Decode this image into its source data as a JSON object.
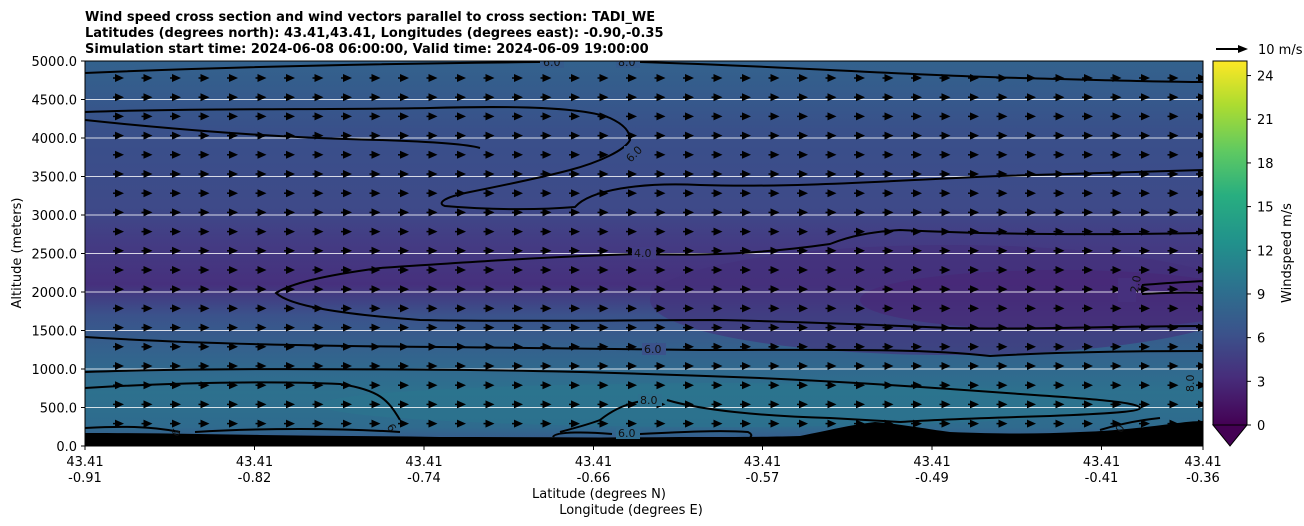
{
  "chart_data": {
    "type": "heatmap",
    "title_lines": [
      "Wind speed cross section and wind vectors parallel to cross section: TADI_WE",
      "Latitudes (degrees north): 43.41,43.41, Longitudes (degrees east): -0.90,-0.35",
      "Simulation start time: 2024-06-08 06:00:00, Valid time: 2024-06-09 19:00:00"
    ],
    "ylabel": "Altitude (meters)",
    "xlabel_lat": "Latitude (degrees N)",
    "xlabel_lon": "Longitude (degrees E)",
    "ylim": [
      0,
      5000
    ],
    "yticks": [
      0,
      500,
      1000,
      1500,
      2000,
      2500,
      3000,
      3500,
      4000,
      4500,
      5000
    ],
    "ytick_labels": [
      "0.0",
      "500.0",
      "1000.0",
      "1500.0",
      "2000.0",
      "2500.0",
      "3000.0",
      "3500.0",
      "4000.0",
      "4500.0",
      "5000.0"
    ],
    "xticks": [
      {
        "lat": "43.41",
        "lon": "-0.91"
      },
      {
        "lat": "43.41",
        "lon": "-0.82"
      },
      {
        "lat": "43.41",
        "lon": "-0.74"
      },
      {
        "lat": "43.41",
        "lon": "-0.66"
      },
      {
        "lat": "43.41",
        "lon": "-0.57"
      },
      {
        "lat": "43.41",
        "lon": "-0.49"
      },
      {
        "lat": "43.41",
        "lon": "-0.41"
      },
      {
        "lat": "43.41",
        "lon": "-0.36"
      }
    ],
    "colorbar": {
      "label": "Windspeed m/s",
      "range": [
        0,
        25
      ],
      "ticks": [
        0,
        3,
        6,
        9,
        12,
        15,
        18,
        21,
        24
      ],
      "tick_labels": [
        "0",
        "3",
        "6",
        "9",
        "12",
        "15",
        "18",
        "21",
        "24"
      ],
      "extend": "min"
    },
    "quiver_key_label": "10 m/s",
    "contour_labels": [
      "6.0",
      "8.0",
      "6.0",
      "4.0",
      "2.0",
      "6.0",
      "8.0",
      "6.0",
      "8.0",
      "6",
      "6",
      "0"
    ],
    "wind_vectors_direction": "eastward",
    "wind_speed_layers": [
      {
        "altitude_range": [
          4300,
          5000
        ],
        "speed": 8
      },
      {
        "altitude_range": [
          3500,
          4300
        ],
        "speed": 6
      },
      {
        "altitude_range": [
          2200,
          3500
        ],
        "speed": 5
      },
      {
        "altitude_range": [
          1500,
          2200
        ],
        "speed": 3
      },
      {
        "altitude_range": [
          1000,
          1500
        ],
        "speed": 6
      },
      {
        "altitude_range": [
          0,
          1000
        ],
        "speed": 8
      }
    ],
    "colors": {
      "cmap_low": "#440154",
      "cmap_mid": "#31688e",
      "cmap_high": "#fde725",
      "terrain": "#000000",
      "gridline": "#ffffff",
      "contour": "#000000"
    }
  }
}
